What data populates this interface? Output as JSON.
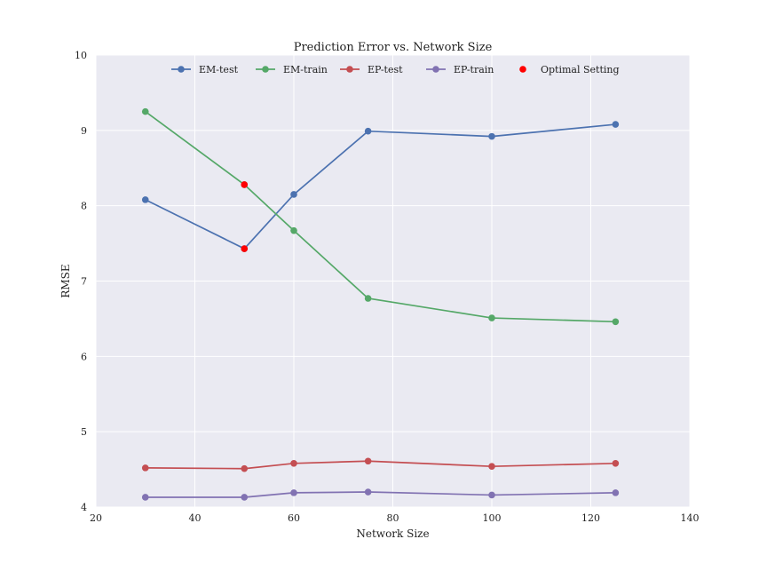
{
  "chart_data": {
    "type": "line",
    "title": "Prediction Error vs. Network Size",
    "xlabel": "Network Size",
    "ylabel": "RMSE",
    "xlim": [
      20,
      140
    ],
    "ylim": [
      4,
      10
    ],
    "xticks": [
      20,
      40,
      60,
      80,
      100,
      120,
      140
    ],
    "yticks": [
      4,
      5,
      6,
      7,
      8,
      9,
      10
    ],
    "grid": true,
    "legend_position": "top",
    "x": [
      30,
      50,
      60,
      75,
      100,
      125
    ],
    "series": [
      {
        "name": "EM-test",
        "color": "#4c72b0",
        "values": [
          8.08,
          7.43,
          8.15,
          8.99,
          8.92,
          9.08
        ]
      },
      {
        "name": "EM-train",
        "color": "#55a868",
        "values": [
          9.25,
          8.28,
          7.67,
          6.77,
          6.51,
          6.46
        ]
      },
      {
        "name": "EP-test",
        "color": "#c44e52",
        "values": [
          4.52,
          4.51,
          4.58,
          4.61,
          4.54,
          4.58
        ]
      },
      {
        "name": "EP-train",
        "color": "#8172b2",
        "values": [
          4.13,
          4.13,
          4.19,
          4.2,
          4.16,
          4.19
        ]
      }
    ],
    "optimal": {
      "name": "Optimal Setting",
      "color": "#ff0000",
      "points": [
        {
          "x": 50,
          "y": 8.28
        },
        {
          "x": 50,
          "y": 7.43
        }
      ]
    }
  }
}
